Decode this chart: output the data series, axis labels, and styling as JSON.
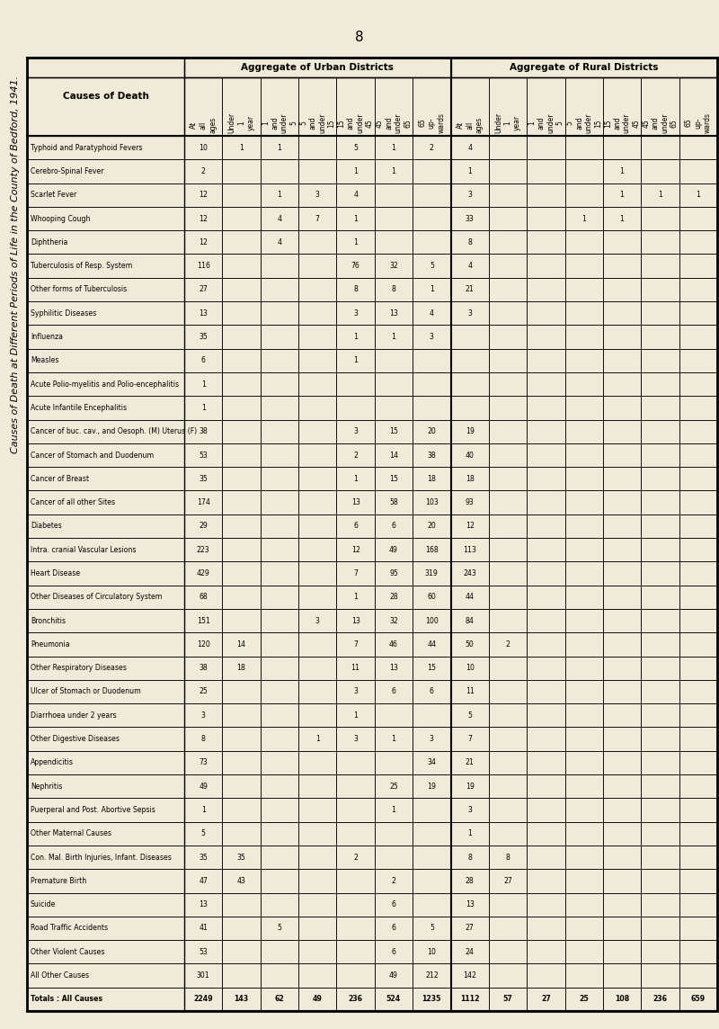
{
  "title": "Causes of Death at Different Periods of Life in the County of Bedford, 1941.",
  "page_number": "8",
  "bg_color": "#f0ead8",
  "causes": [
    "Typhoid and Paratyphoid Fevers",
    "Cerebro-Spinal Fever",
    "Scarlet Fever",
    "Whooping Cough",
    "Diphtheria",
    "Tuberculosis of Resp. System",
    "Other forms of Tuberculosis",
    "Syphilitic Diseases",
    "Influenza",
    "Measles",
    "Acute Polio-myelitis and Polio-encephalitis",
    "Acute Infantile Encephalitis",
    "Cancer of buc. cav., and Oesoph. (M) Uterus (F)",
    "Cancer of Stomach and Duodenum",
    "Cancer of Breast",
    "Cancer of all other Sites",
    "Diabetes",
    "Intra. cranial Vascular Lesions",
    "Heart Disease",
    "Other Diseases of Circulatory System",
    "Bronchitis",
    "Pneumonia",
    "Other Respiratory Diseases",
    "Ulcer of Stomach or Duodenum",
    "Diarrhoea under 2 years",
    "Other Digestive Diseases",
    "Appendicitis",
    "Nephritis",
    "Puerperal and Post. Abortive Sepsis",
    "Other Maternal Causes",
    "Con. Mal. Birth Injuries, Infant. Diseases",
    "Premature Birth",
    "Suicide",
    "Road Traffic Accidents",
    "Other Violent Causes",
    "All Other Causes",
    "Totals : All Causes"
  ],
  "col_headers": [
    "At all ages",
    "Under 1 year",
    "1 and under 5",
    "5 and under 15",
    "15 and under 45",
    "45 and under 65",
    "65 up-wards"
  ],
  "urban_data": [
    [
      10,
      1,
      1,
      0,
      5,
      1,
      2
    ],
    [
      2,
      0,
      0,
      0,
      1,
      1,
      0
    ],
    [
      12,
      0,
      1,
      3,
      4,
      0,
      0
    ],
    [
      12,
      0,
      4,
      7,
      1,
      0,
      0
    ],
    [
      12,
      0,
      4,
      0,
      1,
      0,
      0
    ],
    [
      116,
      0,
      0,
      0,
      76,
      32,
      5
    ],
    [
      27,
      0,
      0,
      0,
      8,
      8,
      1
    ],
    [
      13,
      0,
      0,
      0,
      3,
      13,
      4
    ],
    [
      35,
      0,
      0,
      0,
      1,
      1,
      3
    ],
    [
      6,
      0,
      0,
      0,
      1,
      0,
      0
    ],
    [
      1,
      0,
      0,
      0,
      0,
      0,
      0
    ],
    [
      1,
      0,
      0,
      0,
      0,
      0,
      0
    ],
    [
      38,
      0,
      0,
      0,
      3,
      15,
      20
    ],
    [
      53,
      0,
      0,
      0,
      2,
      14,
      38
    ],
    [
      35,
      0,
      0,
      0,
      1,
      15,
      18
    ],
    [
      174,
      0,
      0,
      0,
      13,
      58,
      103
    ],
    [
      29,
      0,
      0,
      0,
      6,
      6,
      20
    ],
    [
      223,
      0,
      0,
      0,
      12,
      49,
      168
    ],
    [
      429,
      0,
      0,
      0,
      7,
      95,
      319
    ],
    [
      68,
      0,
      0,
      0,
      1,
      28,
      60
    ],
    [
      151,
      0,
      0,
      3,
      13,
      32,
      100
    ],
    [
      120,
      14,
      0,
      0,
      7,
      46,
      44
    ],
    [
      38,
      18,
      0,
      0,
      11,
      13,
      15
    ],
    [
      25,
      0,
      0,
      0,
      3,
      6,
      6
    ],
    [
      3,
      0,
      0,
      0,
      1,
      0,
      0
    ],
    [
      8,
      0,
      0,
      1,
      3,
      1,
      3
    ],
    [
      73,
      0,
      0,
      0,
      0,
      0,
      34
    ],
    [
      49,
      0,
      0,
      0,
      0,
      25,
      19
    ],
    [
      1,
      0,
      0,
      0,
      0,
      1,
      0
    ],
    [
      5,
      0,
      0,
      0,
      0,
      0,
      0
    ],
    [
      35,
      35,
      0,
      0,
      2,
      0,
      0
    ],
    [
      47,
      43,
      0,
      0,
      0,
      2,
      0
    ],
    [
      13,
      0,
      0,
      0,
      0,
      6,
      0
    ],
    [
      41,
      0,
      5,
      0,
      0,
      6,
      5
    ],
    [
      53,
      0,
      0,
      0,
      0,
      6,
      10
    ],
    [
      301,
      0,
      0,
      0,
      0,
      49,
      212
    ],
    [
      2249,
      143,
      62,
      49,
      236,
      524,
      1235
    ]
  ],
  "rural_data": [
    [
      4,
      0,
      0,
      0,
      0,
      0,
      0
    ],
    [
      1,
      0,
      0,
      0,
      1,
      0,
      0
    ],
    [
      3,
      0,
      0,
      0,
      1,
      1,
      1
    ],
    [
      33,
      0,
      0,
      1,
      1,
      0,
      0
    ],
    [
      8,
      0,
      0,
      0,
      0,
      0,
      0
    ],
    [
      4,
      0,
      0,
      0,
      0,
      0,
      0
    ],
    [
      21,
      0,
      0,
      0,
      0,
      0,
      0
    ],
    [
      3,
      0,
      0,
      0,
      0,
      0,
      0
    ],
    [
      0,
      0,
      0,
      0,
      0,
      0,
      0
    ],
    [
      0,
      0,
      0,
      0,
      0,
      0,
      0
    ],
    [
      0,
      0,
      0,
      0,
      0,
      0,
      0
    ],
    [
      0,
      0,
      0,
      0,
      0,
      0,
      0
    ],
    [
      19,
      0,
      0,
      0,
      0,
      0,
      0
    ],
    [
      40,
      0,
      0,
      0,
      0,
      0,
      0
    ],
    [
      18,
      0,
      0,
      0,
      0,
      0,
      0
    ],
    [
      93,
      0,
      0,
      0,
      0,
      0,
      0
    ],
    [
      12,
      0,
      0,
      0,
      0,
      0,
      0
    ],
    [
      113,
      0,
      0,
      0,
      0,
      0,
      0
    ],
    [
      243,
      0,
      0,
      0,
      0,
      0,
      0
    ],
    [
      44,
      0,
      0,
      0,
      0,
      0,
      0
    ],
    [
      84,
      0,
      0,
      0,
      0,
      0,
      0
    ],
    [
      50,
      2,
      0,
      0,
      0,
      0,
      0
    ],
    [
      10,
      0,
      0,
      0,
      0,
      0,
      0
    ],
    [
      11,
      0,
      0,
      0,
      0,
      0,
      0
    ],
    [
      5,
      0,
      0,
      0,
      0,
      0,
      0
    ],
    [
      7,
      0,
      0,
      0,
      0,
      0,
      0
    ],
    [
      21,
      0,
      0,
      0,
      0,
      0,
      0
    ],
    [
      19,
      0,
      0,
      0,
      0,
      0,
      0
    ],
    [
      3,
      0,
      0,
      0,
      0,
      0,
      0
    ],
    [
      1,
      0,
      0,
      0,
      0,
      0,
      0
    ],
    [
      8,
      8,
      0,
      0,
      0,
      0,
      0
    ],
    [
      28,
      27,
      0,
      0,
      0,
      0,
      0
    ],
    [
      13,
      0,
      0,
      0,
      0,
      0,
      0
    ],
    [
      27,
      0,
      0,
      0,
      0,
      0,
      0
    ],
    [
      24,
      0,
      0,
      0,
      0,
      0,
      0
    ],
    [
      142,
      0,
      0,
      0,
      0,
      0,
      0
    ],
    [
      1112,
      57,
      27,
      25,
      108,
      236,
      659
    ]
  ]
}
